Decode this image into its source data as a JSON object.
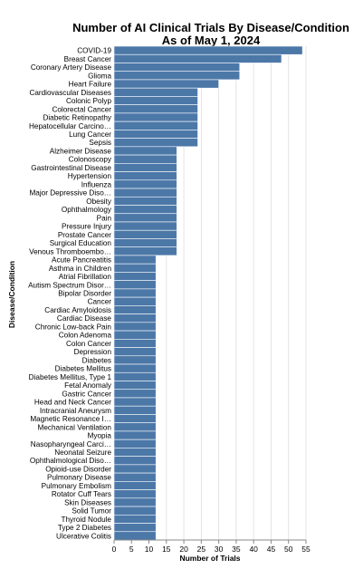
{
  "chart_data": {
    "type": "bar",
    "orientation": "horizontal",
    "title": [
      "Number of AI Clinical Trials By Disease/Condition",
      "As of May 1, 2024"
    ],
    "xlabel": "Number of Trials",
    "ylabel": "Disease/Condition",
    "xlim": [
      0,
      55
    ],
    "xticks": [
      0,
      5,
      10,
      15,
      20,
      25,
      30,
      35,
      40,
      45,
      50,
      55
    ],
    "grid": true,
    "bar_color": "#4c78a8",
    "categories": [
      "COVID-19",
      "Breast Cancer",
      "Coronary Artery Disease",
      "Glioma",
      "Heart Failure",
      "Cardiovascular Diseases",
      "Colonic Polyp",
      "Colorectal Cancer",
      "Diabetic Retinopathy",
      "Hepatocellular Carcino…",
      "Lung Cancer",
      "Sepsis",
      "Alzheimer Disease",
      "Colonoscopy",
      "Gastrointestinal Disease",
      "Hypertension",
      "Influenza",
      "Major Depressive Diso…",
      "Obesity",
      "Ophthalmology",
      "Pain",
      "Pressure Injury",
      "Prostate Cancer",
      "Surgical Education",
      "Venous Thromboembo…",
      "Acute Pancreatitis",
      "Asthma in Children",
      "Atrial Fibrillation",
      "Autism Spectrum Disor…",
      "Bipolar Disorder",
      "Cancer",
      "Cardiac Amyloidosis",
      "Cardiac Disease",
      "Chronic Low-back Pain",
      "Colon Adenoma",
      "Colon Cancer",
      "Depression",
      "Diabetes",
      "Diabetes Mellitus",
      "Diabetes Mellitus, Type 1",
      "Fetal Anomaly",
      "Gastric Cancer",
      "Head and Neck Cancer",
      "Intracranial Aneurysm",
      "Magnetic Resonance I…",
      "Mechanical Ventilation",
      "Myopia",
      "Nasopharyngeal Carci…",
      "Neonatal Seizure",
      "Ophthalmological Diso…",
      "Opioid-use Disorder",
      "Pulmonary Disease",
      "Pulmonary Embolism",
      "Rotator Cuff Tears",
      "Skin Diseases",
      "Solid Tumor",
      "Thyroid Nodule",
      "Type 2 Diabetes",
      "Ulcerative Colitis"
    ],
    "values": [
      54,
      48,
      36,
      36,
      30,
      24,
      24,
      24,
      24,
      24,
      24,
      24,
      18,
      18,
      18,
      18,
      18,
      18,
      18,
      18,
      18,
      18,
      18,
      18,
      18,
      12,
      12,
      12,
      12,
      12,
      12,
      12,
      12,
      12,
      12,
      12,
      12,
      12,
      12,
      12,
      12,
      12,
      12,
      12,
      12,
      12,
      12,
      12,
      12,
      12,
      12,
      12,
      12,
      12,
      12,
      12,
      12,
      12,
      12
    ]
  }
}
